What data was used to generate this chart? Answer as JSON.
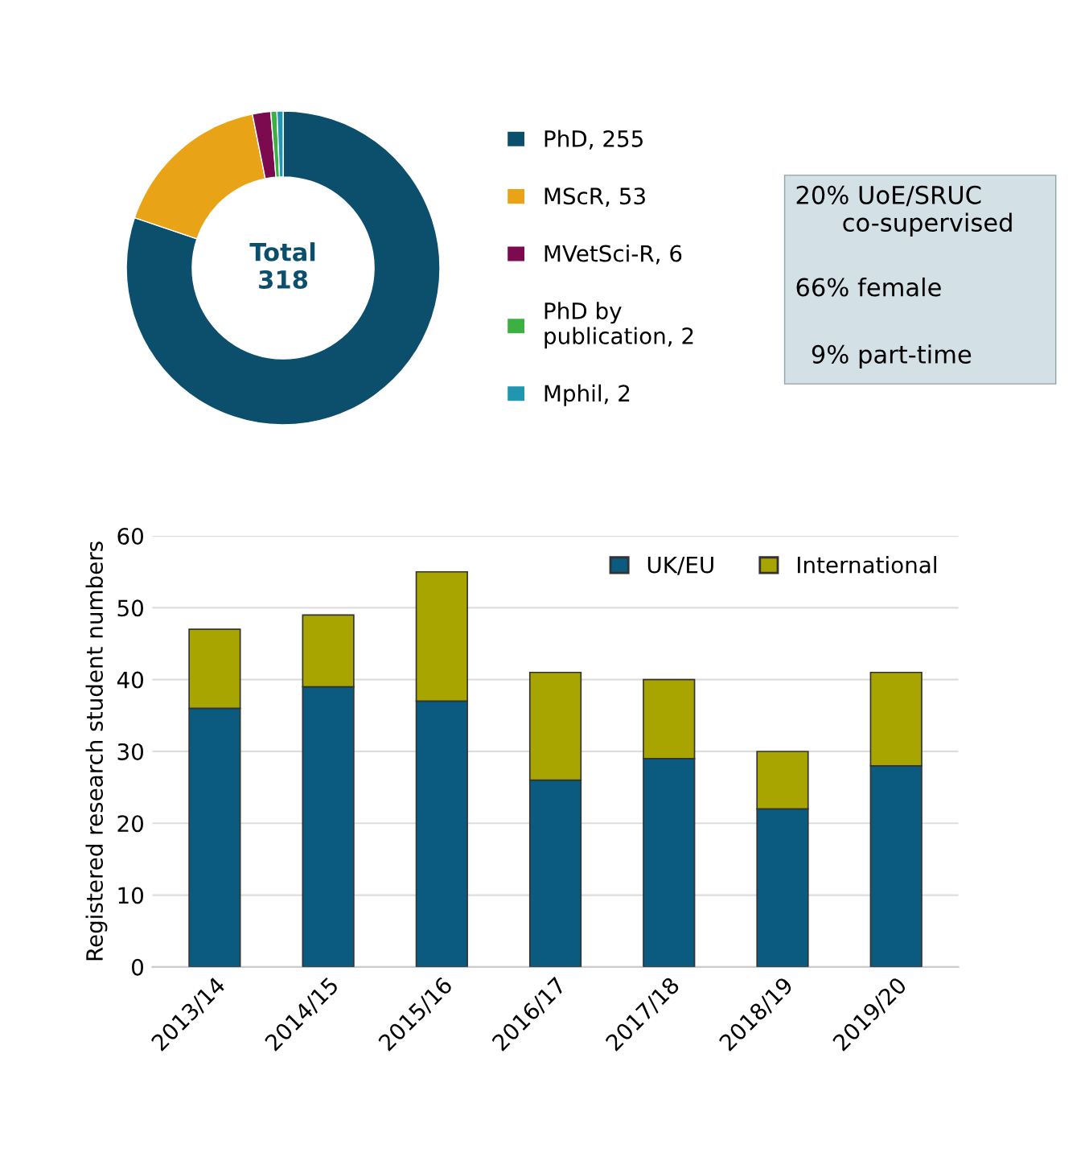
{
  "chart_data": [
    {
      "type": "donut",
      "categories": [
        "PhD, 255",
        "MScR, 53",
        "MVetSci-R, 6",
        "PhD by\npublication, 2",
        "Mphil, 2"
      ],
      "values": [
        255,
        53,
        6,
        2,
        2
      ],
      "colors": [
        "#0b4f6c",
        "#e8a317",
        "#7b0a4f",
        "#3cb043",
        "#2196b0"
      ],
      "annotations": [
        "Total\n318"
      ],
      "legend": "right"
    },
    {
      "type": "other",
      "annotations": [
        "20% UoE/SRUC\n      co-supervised",
        "66% female",
        "  9% part-time"
      ]
    },
    {
      "type": "bar",
      "stacked": true,
      "categories": [
        "2013/14",
        "2014/15",
        "2015/16",
        "2016/17",
        "2017/18",
        "2018/19",
        "2019/20"
      ],
      "ylabel": "Registered research student numbers",
      "ylim": [
        0,
        60
      ],
      "yticks": [
        0,
        10,
        20,
        30,
        40,
        50,
        60
      ],
      "grid": "y",
      "legend": "top right",
      "series": [
        {
          "name": "UK/EU",
          "color": "#0b5a80",
          "values": [
            36,
            39,
            37,
            26,
            29,
            22,
            28
          ]
        },
        {
          "name": "International",
          "color": "#a8a400",
          "values": [
            11,
            10,
            18,
            15,
            11,
            8,
            13
          ]
        }
      ]
    }
  ]
}
